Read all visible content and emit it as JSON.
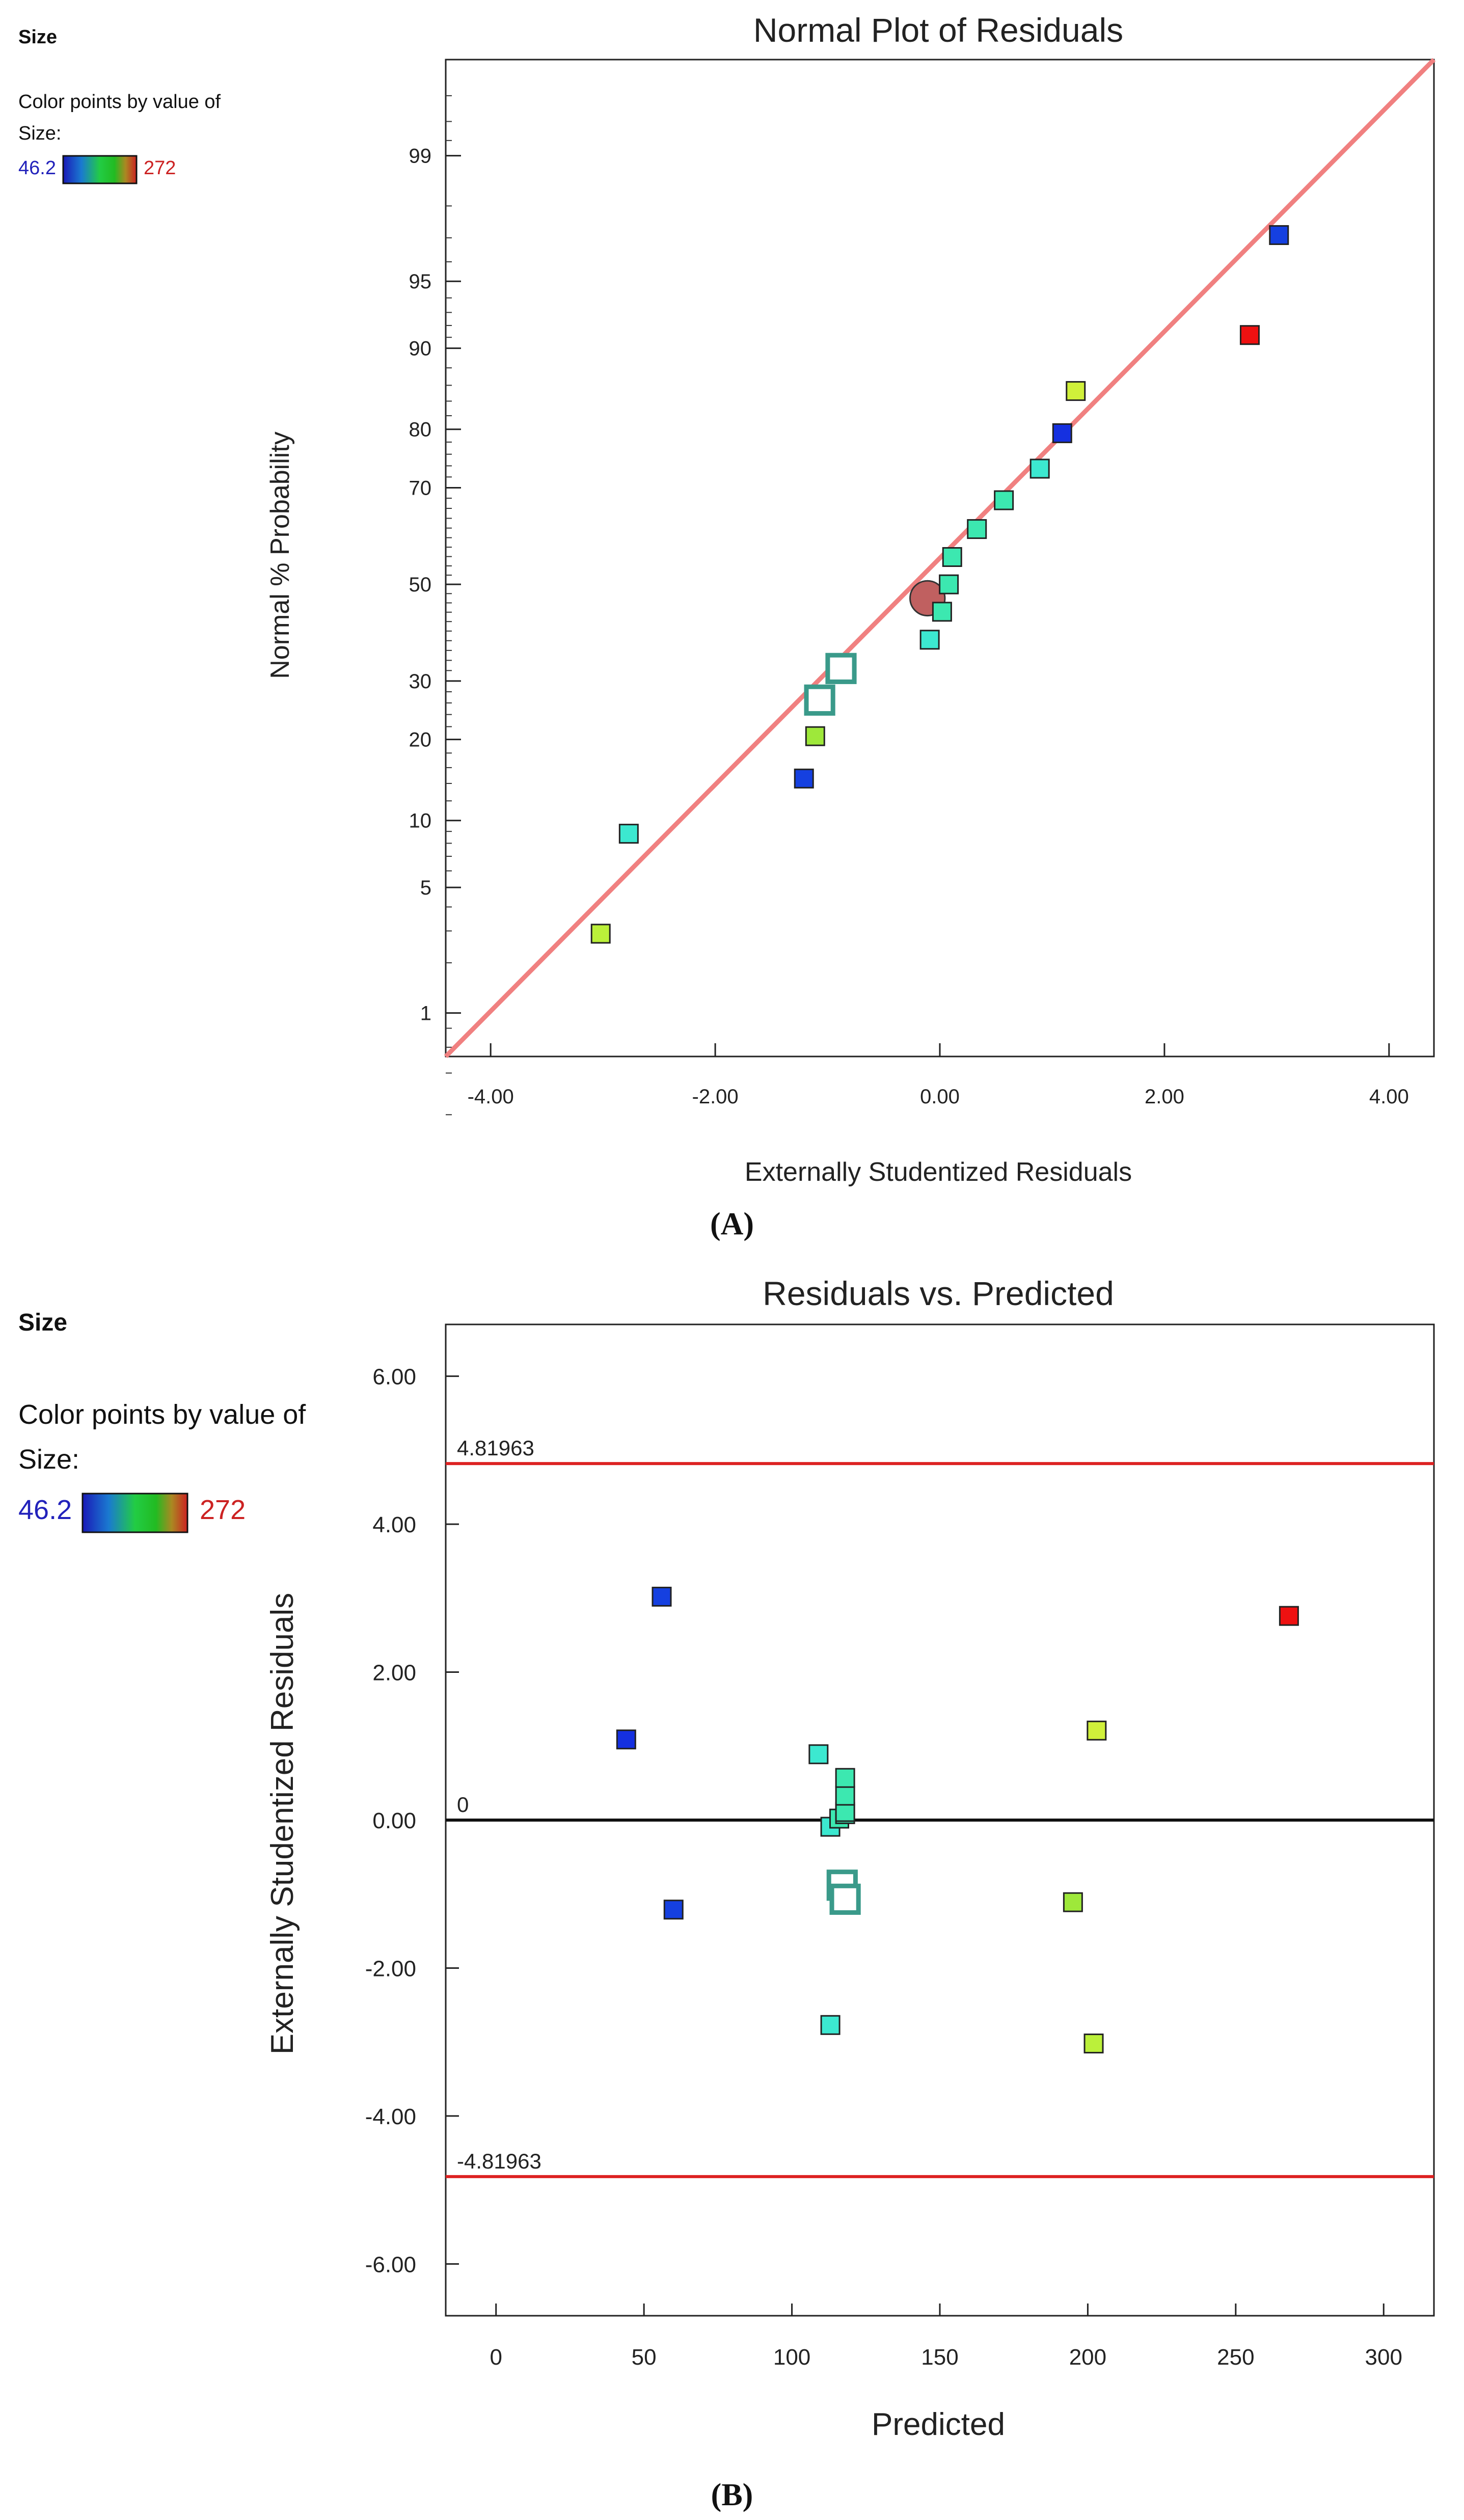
{
  "chart_data": [
    {
      "type": "scatter",
      "title": "Normal Plot of Residuals",
      "xlabel": "Externally Studentized Residuals",
      "ylabel": "Normal % Probability",
      "xlim": [
        -4.4,
        4.4
      ],
      "x_ticks": [
        "-4.00",
        "-2.00",
        "0.00",
        "2.00",
        "4.00"
      ],
      "x_tick_values": [
        -4,
        -2,
        0,
        2,
        4
      ],
      "y_scale": "normal-probability",
      "y_ticks": [
        "1",
        "5",
        "10",
        "20",
        "30",
        "50",
        "70",
        "80",
        "90",
        "95",
        "99"
      ],
      "y_tick_values": [
        1,
        5,
        10,
        20,
        30,
        50,
        70,
        80,
        90,
        95,
        99
      ],
      "grid": false,
      "fit_line": {
        "color": "#f08080",
        "x": [
          -4.4,
          4.4
        ],
        "y_probability": [
          0.52,
          99.78
        ]
      },
      "legend": {
        "title": "Size",
        "caption": "Color points by value of Size:",
        "min_label": "46.2",
        "max_label": "272",
        "min_color": "#2222bb",
        "max_color": "#cc2222",
        "placement": "top-left"
      },
      "points": [
        {
          "x": -3.02,
          "y": 2.9,
          "color": "#bbf03a",
          "marker": "square"
        },
        {
          "x": -2.77,
          "y": 8.8,
          "color": "#3ce8d0",
          "marker": "square"
        },
        {
          "x": -1.21,
          "y": 14.6,
          "color": "#1540e0",
          "marker": "square"
        },
        {
          "x": -1.11,
          "y": 20.5,
          "color": "#9ee83a",
          "marker": "square"
        },
        {
          "x": -1.07,
          "y": 26.5,
          "color": "#3a9a8a",
          "marker": "hollow-square"
        },
        {
          "x": -0.88,
          "y": 32.4,
          "color": "#3a9a8a",
          "marker": "hollow-square"
        },
        {
          "x": -0.09,
          "y": 38.2,
          "color": "#3ce8d0",
          "marker": "square"
        },
        {
          "x": -0.11,
          "y": 47.0,
          "color": "#c06060",
          "marker": "circle"
        },
        {
          "x": 0.02,
          "y": 44.1,
          "color": "#3ce8b0",
          "marker": "square"
        },
        {
          "x": 0.08,
          "y": 50.0,
          "color": "#3ce8b0",
          "marker": "square"
        },
        {
          "x": 0.11,
          "y": 55.9,
          "color": "#3ce8b0",
          "marker": "square"
        },
        {
          "x": 0.33,
          "y": 61.8,
          "color": "#3ce8b0",
          "marker": "square"
        },
        {
          "x": 0.57,
          "y": 67.6,
          "color": "#3ce8b0",
          "marker": "square"
        },
        {
          "x": 0.89,
          "y": 73.5,
          "color": "#3ce8d0",
          "marker": "square"
        },
        {
          "x": 1.09,
          "y": 79.4,
          "color": "#1530e0",
          "marker": "square"
        },
        {
          "x": 1.21,
          "y": 85.3,
          "color": "#d0f03a",
          "marker": "square"
        },
        {
          "x": 2.76,
          "y": 91.2,
          "color": "#ee1111",
          "marker": "square"
        },
        {
          "x": 3.02,
          "y": 97.1,
          "color": "#1540e0",
          "marker": "square"
        }
      ],
      "caption": "(A)"
    },
    {
      "type": "scatter",
      "title": "Residuals vs. Predicted",
      "xlabel": "Predicted",
      "ylabel": "Externally Studentized Residuals",
      "xlim": [
        -17,
        317
      ],
      "ylim": [
        -6.7,
        6.7
      ],
      "x_ticks": [
        "0",
        "50",
        "100",
        "150",
        "200",
        "250",
        "300"
      ],
      "x_tick_values": [
        0,
        50,
        100,
        150,
        200,
        250,
        300
      ],
      "y_ticks": [
        "6.00",
        "4.00",
        "2.00",
        "0.00",
        "-2.00",
        "-4.00",
        "-6.00"
      ],
      "y_tick_values": [
        6,
        4,
        2,
        0,
        -2,
        -4,
        -6
      ],
      "grid": false,
      "reference_lines": [
        {
          "y": 4.81963,
          "label": "4.81963",
          "color": "#dd2222"
        },
        {
          "y": 0,
          "label": "0",
          "color": "#111111"
        },
        {
          "y": -4.81963,
          "label": "-4.81963",
          "color": "#dd2222"
        }
      ],
      "legend": {
        "title": "Size",
        "caption": "Color points by value of Size:",
        "min_label": "46.2",
        "max_label": "272",
        "min_color": "#2222bb",
        "max_color": "#cc2222",
        "placement": "top-left"
      },
      "points": [
        {
          "x": 44,
          "y": 1.09,
          "color": "#1530e0",
          "marker": "square"
        },
        {
          "x": 56,
          "y": 3.02,
          "color": "#1540e0",
          "marker": "square"
        },
        {
          "x": 60,
          "y": -1.21,
          "color": "#1540e0",
          "marker": "square"
        },
        {
          "x": 109,
          "y": 0.89,
          "color": "#3ce8d0",
          "marker": "square"
        },
        {
          "x": 113,
          "y": -0.09,
          "color": "#3ce8d0",
          "marker": "square"
        },
        {
          "x": 113,
          "y": -2.77,
          "color": "#3ce8d0",
          "marker": "square"
        },
        {
          "x": 116,
          "y": 0.02,
          "color": "#3ce8b0",
          "marker": "square"
        },
        {
          "x": 117,
          "y": -0.88,
          "color": "#3a9a8a",
          "marker": "hollow-square"
        },
        {
          "x": 118,
          "y": -1.07,
          "color": "#3a9a8a",
          "marker": "hollow-square"
        },
        {
          "x": 118,
          "y": 0.08,
          "color": "#3ce8b0",
          "marker": "square"
        },
        {
          "x": 118,
          "y": 0.11,
          "color": "#3ce8b0",
          "marker": "square"
        },
        {
          "x": 118,
          "y": 0.33,
          "color": "#3ce8b0",
          "marker": "square"
        },
        {
          "x": 118,
          "y": 0.57,
          "color": "#3ce8b0",
          "marker": "square"
        },
        {
          "x": 195,
          "y": -1.11,
          "color": "#9ee83a",
          "marker": "square"
        },
        {
          "x": 202,
          "y": -3.02,
          "color": "#bbf03a",
          "marker": "square"
        },
        {
          "x": 203,
          "y": 1.21,
          "color": "#d0f03a",
          "marker": "square"
        },
        {
          "x": 268,
          "y": 2.76,
          "color": "#ee1111",
          "marker": "square"
        }
      ],
      "caption": "(B)"
    }
  ]
}
